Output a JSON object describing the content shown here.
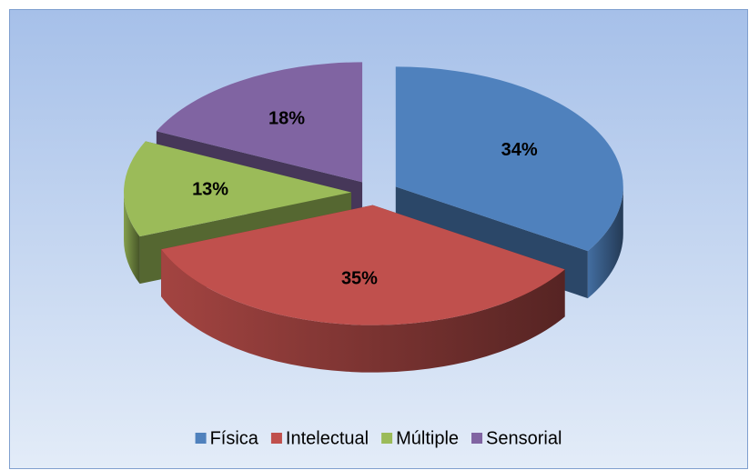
{
  "chart_data": {
    "type": "pie3d",
    "categories": [
      "Física",
      "Intelectual",
      "Múltiple",
      "Sensorial"
    ],
    "values": [
      34,
      35,
      13,
      18
    ],
    "value_labels": [
      "34%",
      "35%",
      "13%",
      "18%"
    ],
    "colors": [
      "#4f81bd",
      "#c0504d",
      "#9bbb59",
      "#8064a2"
    ],
    "legend": "bottom"
  }
}
